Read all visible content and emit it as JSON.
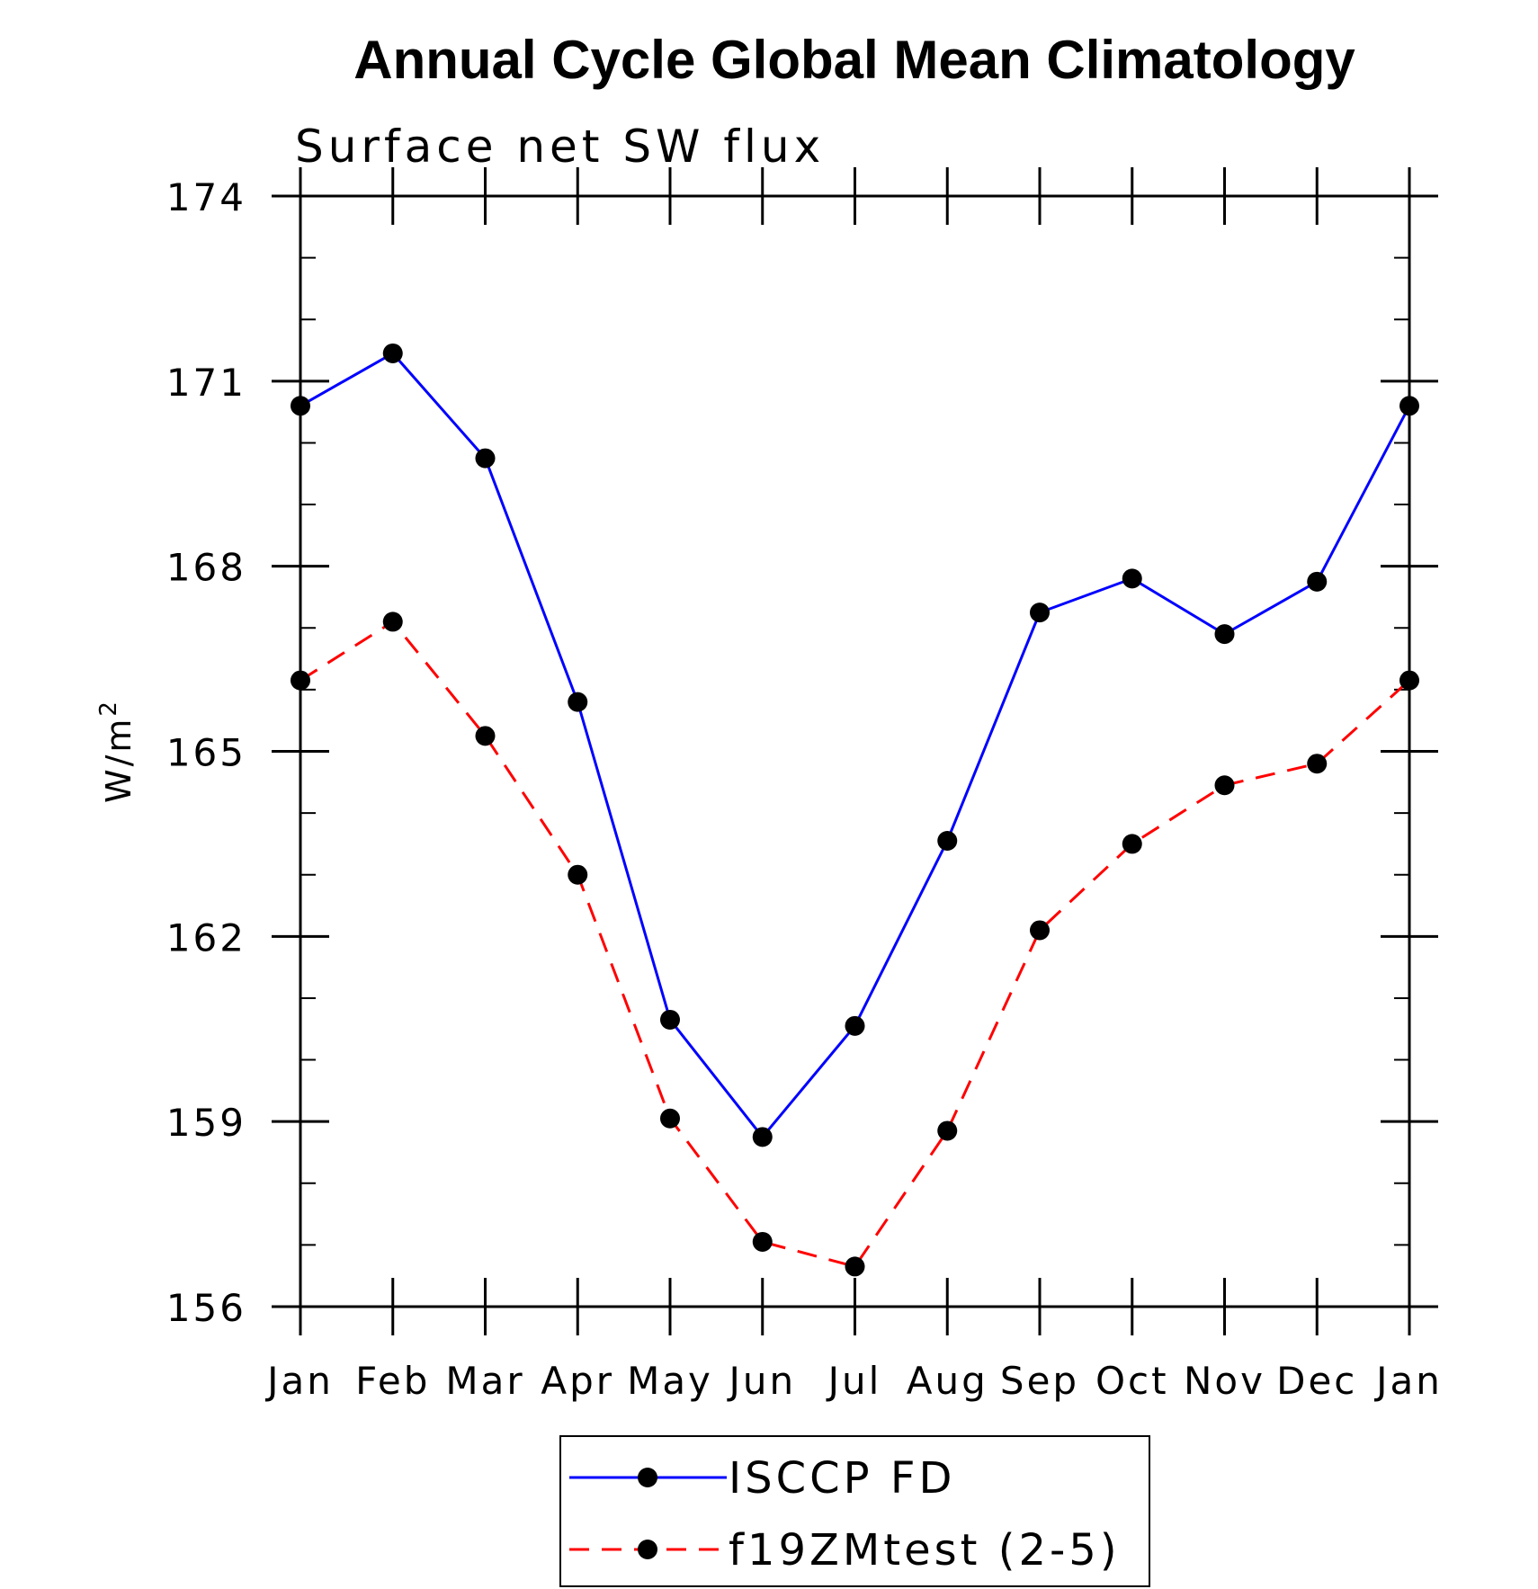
{
  "chart_data": {
    "type": "line",
    "title": "Annual Cycle Global Mean Climatology",
    "subtitle": "Surface net SW flux",
    "ylabel": "W/m",
    "ylabel_superscript": "2",
    "categories": [
      "Jan",
      "Feb",
      "Mar",
      "Apr",
      "May",
      "Jun",
      "Jul",
      "Aug",
      "Sep",
      "Oct",
      "Nov",
      "Dec",
      "Jan"
    ],
    "ylim": [
      156,
      174
    ],
    "yticks": [
      156,
      159,
      162,
      165,
      168,
      171,
      174
    ],
    "y_minor_step": 1,
    "series": [
      {
        "name": "ISCCP FD",
        "color": "#0000ff",
        "dash": "solid",
        "marker": "filled-circle",
        "values": [
          170.6,
          171.45,
          169.75,
          165.8,
          160.65,
          158.75,
          160.55,
          163.55,
          167.25,
          167.8,
          166.9,
          167.75,
          170.6
        ]
      },
      {
        "name": "f19ZMtest (2-5)",
        "color": "#ff0000",
        "dash": "dashed",
        "marker": "filled-circle",
        "values": [
          166.15,
          167.1,
          165.25,
          163.0,
          159.05,
          157.05,
          156.65,
          158.85,
          162.1,
          163.5,
          164.45,
          164.8,
          166.15
        ]
      }
    ],
    "legend_position": "bottom",
    "grid": false
  }
}
